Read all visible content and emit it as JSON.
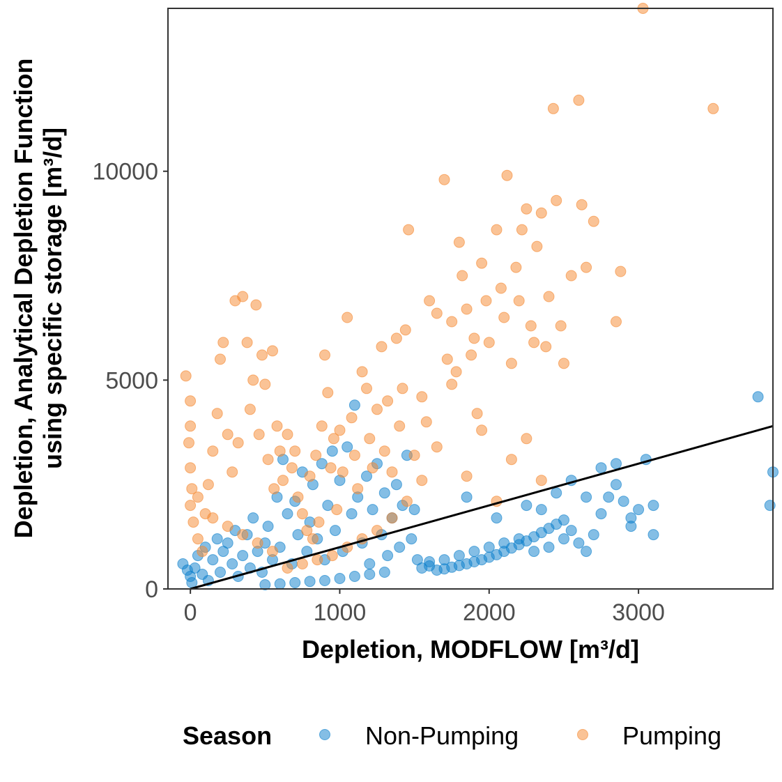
{
  "chart_data": {
    "type": "scatter",
    "title": "",
    "xlabel": "Depletion, MODFLOW [m³/d]",
    "ylabel_line1": "Depletion, Analytical Depletion Function",
    "ylabel_line2": "using specific storage [m³/d]",
    "xlim": [
      -150,
      3900
    ],
    "ylim": [
      0,
      13900
    ],
    "x_ticks": [
      0,
      1000,
      2000,
      3000
    ],
    "x_tick_labels": [
      "0",
      "1000",
      "2000",
      "3000"
    ],
    "y_ticks": [
      0,
      5000,
      10000
    ],
    "y_tick_labels": [
      "0",
      "5000",
      "10000"
    ],
    "grid": false,
    "legend": {
      "title": "Season",
      "position": "bottom"
    },
    "reference_line": {
      "type": "linear",
      "from": [
        0,
        0
      ],
      "to": [
        3900,
        3900
      ],
      "color": "#000000"
    },
    "series": [
      {
        "name": "Non-Pumping",
        "color": "#0A7ECC",
        "points": [
          [
            -50,
            600
          ],
          [
            -20,
            450
          ],
          [
            0,
            300
          ],
          [
            10,
            150
          ],
          [
            30,
            500
          ],
          [
            50,
            800
          ],
          [
            80,
            350
          ],
          [
            100,
            1000
          ],
          [
            120,
            200
          ],
          [
            150,
            700
          ],
          [
            180,
            1200
          ],
          [
            200,
            400
          ],
          [
            220,
            900
          ],
          [
            250,
            1100
          ],
          [
            280,
            600
          ],
          [
            300,
            1400
          ],
          [
            320,
            300
          ],
          [
            350,
            800
          ],
          [
            380,
            1300
          ],
          [
            400,
            500
          ],
          [
            420,
            1700
          ],
          [
            450,
            900
          ],
          [
            480,
            400
          ],
          [
            500,
            1100
          ],
          [
            520,
            1500
          ],
          [
            550,
            700
          ],
          [
            580,
            2200
          ],
          [
            600,
            1000
          ],
          [
            620,
            3100
          ],
          [
            650,
            1800
          ],
          [
            680,
            600
          ],
          [
            700,
            2100
          ],
          [
            720,
            1300
          ],
          [
            750,
            2800
          ],
          [
            780,
            900
          ],
          [
            800,
            1600
          ],
          [
            820,
            2500
          ],
          [
            850,
            1200
          ],
          [
            880,
            3000
          ],
          [
            900,
            700
          ],
          [
            920,
            2000
          ],
          [
            950,
            3300
          ],
          [
            970,
            1400
          ],
          [
            1000,
            2600
          ],
          [
            1020,
            900
          ],
          [
            1050,
            3400
          ],
          [
            1080,
            1800
          ],
          [
            1100,
            4400
          ],
          [
            1120,
            2200
          ],
          [
            1150,
            1100
          ],
          [
            1180,
            2700
          ],
          [
            1200,
            600
          ],
          [
            1220,
            1900
          ],
          [
            1250,
            3000
          ],
          [
            1280,
            1300
          ],
          [
            1300,
            2300
          ],
          [
            1320,
            800
          ],
          [
            1350,
            1700
          ],
          [
            1380,
            2500
          ],
          [
            1400,
            1000
          ],
          [
            1420,
            2000
          ],
          [
            1450,
            3200
          ],
          [
            1480,
            1200
          ],
          [
            1500,
            1900
          ],
          [
            1520,
            700
          ],
          [
            1550,
            500
          ],
          [
            1600,
            550
          ],
          [
            1650,
            450
          ],
          [
            1700,
            480
          ],
          [
            1750,
            520
          ],
          [
            1800,
            560
          ],
          [
            1850,
            600
          ],
          [
            1900,
            650
          ],
          [
            1950,
            700
          ],
          [
            2000,
            760
          ],
          [
            2050,
            820
          ],
          [
            2100,
            900
          ],
          [
            2150,
            980
          ],
          [
            2200,
            1060
          ],
          [
            2250,
            1150
          ],
          [
            2300,
            1250
          ],
          [
            2350,
            1350
          ],
          [
            2400,
            1450
          ],
          [
            2450,
            1550
          ],
          [
            2500,
            1650
          ],
          [
            2550,
            1400
          ],
          [
            2600,
            1100
          ],
          [
            2650,
            900
          ],
          [
            2700,
            1300
          ],
          [
            2750,
            1800
          ],
          [
            2800,
            2200
          ],
          [
            2850,
            2500
          ],
          [
            2900,
            2100
          ],
          [
            2950,
            1700
          ],
          [
            3000,
            1900
          ],
          [
            3050,
            3100
          ],
          [
            3100,
            2000
          ],
          [
            1850,
            2200
          ],
          [
            2050,
            1700
          ],
          [
            2250,
            2000
          ],
          [
            2350,
            1900
          ],
          [
            2450,
            2300
          ],
          [
            2550,
            2600
          ],
          [
            2650,
            2200
          ],
          [
            2750,
            2900
          ],
          [
            2850,
            3000
          ],
          [
            2950,
            1500
          ],
          [
            3100,
            1300
          ],
          [
            3800,
            4600
          ],
          [
            3900,
            2800
          ],
          [
            3880,
            2000
          ],
          [
            1300,
            400
          ],
          [
            1200,
            350
          ],
          [
            1100,
            300
          ],
          [
            1000,
            250
          ],
          [
            900,
            200
          ],
          [
            800,
            180
          ],
          [
            700,
            150
          ],
          [
            600,
            120
          ],
          [
            500,
            100
          ],
          [
            1600,
            650
          ],
          [
            1700,
            700
          ],
          [
            1800,
            800
          ],
          [
            1900,
            900
          ],
          [
            2000,
            1000
          ],
          [
            2100,
            1100
          ],
          [
            2200,
            1200
          ],
          [
            2300,
            900
          ],
          [
            2400,
            1000
          ],
          [
            2500,
            1200
          ]
        ]
      },
      {
        "name": "Pumping",
        "color": "#F5872E",
        "points": [
          [
            -30,
            5100
          ],
          [
            0,
            4500
          ],
          [
            0,
            3900
          ],
          [
            -10,
            3500
          ],
          [
            0,
            2900
          ],
          [
            10,
            2400
          ],
          [
            0,
            2000
          ],
          [
            20,
            1600
          ],
          [
            50,
            1200
          ],
          [
            80,
            900
          ],
          [
            100,
            1800
          ],
          [
            120,
            2500
          ],
          [
            150,
            3300
          ],
          [
            180,
            4200
          ],
          [
            200,
            5500
          ],
          [
            220,
            5900
          ],
          [
            250,
            3700
          ],
          [
            280,
            2800
          ],
          [
            300,
            6900
          ],
          [
            320,
            3500
          ],
          [
            350,
            7000
          ],
          [
            380,
            5900
          ],
          [
            400,
            4300
          ],
          [
            420,
            5000
          ],
          [
            440,
            6800
          ],
          [
            460,
            3700
          ],
          [
            480,
            5600
          ],
          [
            500,
            4900
          ],
          [
            520,
            3100
          ],
          [
            550,
            5700
          ],
          [
            560,
            2400
          ],
          [
            580,
            3900
          ],
          [
            600,
            3300
          ],
          [
            620,
            2600
          ],
          [
            650,
            3700
          ],
          [
            680,
            2900
          ],
          [
            700,
            3300
          ],
          [
            720,
            2200
          ],
          [
            750,
            1800
          ],
          [
            780,
            1400
          ],
          [
            800,
            2700
          ],
          [
            820,
            1200
          ],
          [
            840,
            3200
          ],
          [
            860,
            1600
          ],
          [
            880,
            3900
          ],
          [
            900,
            5600
          ],
          [
            920,
            4700
          ],
          [
            940,
            2900
          ],
          [
            960,
            3600
          ],
          [
            980,
            1900
          ],
          [
            1000,
            3800
          ],
          [
            1020,
            2800
          ],
          [
            1050,
            6500
          ],
          [
            1080,
            4100
          ],
          [
            1100,
            3200
          ],
          [
            1120,
            2400
          ],
          [
            1150,
            5200
          ],
          [
            1180,
            4800
          ],
          [
            1200,
            3600
          ],
          [
            1220,
            2900
          ],
          [
            1250,
            4300
          ],
          [
            1280,
            5800
          ],
          [
            1300,
            3300
          ],
          [
            1320,
            4500
          ],
          [
            1350,
            2800
          ],
          [
            1380,
            6000
          ],
          [
            1400,
            3900
          ],
          [
            1420,
            4800
          ],
          [
            1440,
            6200
          ],
          [
            1460,
            8600
          ],
          [
            1500,
            3200
          ],
          [
            1550,
            4600
          ],
          [
            1580,
            4000
          ],
          [
            1600,
            6900
          ],
          [
            1650,
            6600
          ],
          [
            1700,
            9800
          ],
          [
            1720,
            5500
          ],
          [
            1750,
            6400
          ],
          [
            1780,
            5200
          ],
          [
            1800,
            8300
          ],
          [
            1820,
            7500
          ],
          [
            1850,
            6700
          ],
          [
            1880,
            5600
          ],
          [
            1900,
            6000
          ],
          [
            1920,
            4200
          ],
          [
            1950,
            7800
          ],
          [
            1980,
            6900
          ],
          [
            2000,
            5900
          ],
          [
            2050,
            8600
          ],
          [
            2080,
            7200
          ],
          [
            2100,
            6500
          ],
          [
            2120,
            9900
          ],
          [
            2150,
            5400
          ],
          [
            2180,
            7700
          ],
          [
            2200,
            6900
          ],
          [
            2220,
            8600
          ],
          [
            2250,
            9100
          ],
          [
            2280,
            6300
          ],
          [
            2300,
            5900
          ],
          [
            2320,
            8200
          ],
          [
            2350,
            9000
          ],
          [
            2380,
            5800
          ],
          [
            2400,
            7000
          ],
          [
            2430,
            11500
          ],
          [
            2450,
            9300
          ],
          [
            2480,
            6300
          ],
          [
            2500,
            5400
          ],
          [
            2550,
            7500
          ],
          [
            2600,
            11700
          ],
          [
            2620,
            9200
          ],
          [
            2650,
            7700
          ],
          [
            2700,
            8800
          ],
          [
            2850,
            6400
          ],
          [
            2880,
            7600
          ],
          [
            3030,
            13900
          ],
          [
            3500,
            11500
          ],
          [
            1750,
            4900
          ],
          [
            1850,
            2700
          ],
          [
            1950,
            3800
          ],
          [
            2050,
            2100
          ],
          [
            2150,
            3100
          ],
          [
            2250,
            3600
          ],
          [
            2350,
            2600
          ],
          [
            1650,
            3400
          ],
          [
            1550,
            2600
          ],
          [
            1450,
            2100
          ],
          [
            1350,
            1700
          ],
          [
            1250,
            1400
          ],
          [
            1150,
            1200
          ],
          [
            1050,
            1000
          ],
          [
            950,
            800
          ],
          [
            850,
            700
          ],
          [
            750,
            600
          ],
          [
            650,
            500
          ],
          [
            550,
            900
          ],
          [
            450,
            1100
          ],
          [
            350,
            1300
          ],
          [
            250,
            1500
          ],
          [
            150,
            1700
          ],
          [
            50,
            2200
          ]
        ]
      }
    ]
  }
}
